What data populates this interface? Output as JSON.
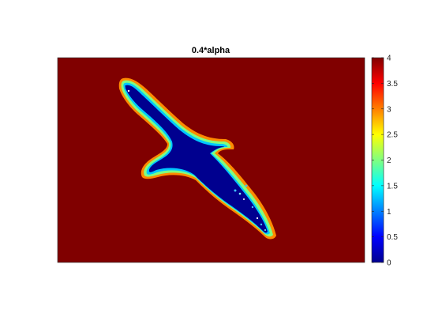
{
  "chart_data": {
    "type": "heatmap",
    "title": "0.4*alpha",
    "xlabel": "",
    "ylabel": "",
    "colormap": "jet",
    "clim": [
      0,
      4
    ],
    "colorbar": {
      "location": "right",
      "ticks": [
        0,
        0.5,
        1,
        1.5,
        2,
        2.5,
        3,
        3.5,
        4
      ],
      "tick_labels": [
        "0",
        "0.5",
        "1",
        "1.5",
        "2",
        "2.5",
        "3",
        "3.5",
        "4"
      ]
    },
    "background_value": 4,
    "region_value": 0,
    "region_shape": "bird silhouette (bird in flight, oriented diagonally from upper-left to lower-right) with a thin gradient boundary from 0 to 4",
    "axes_visible": false,
    "grid": false
  },
  "colors": {
    "background_high": "#800000",
    "region_low": "#00008f"
  }
}
